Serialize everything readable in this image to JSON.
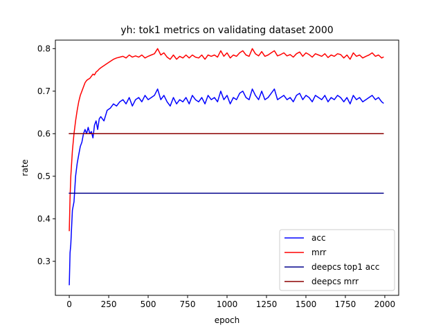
{
  "chart_data": {
    "type": "line",
    "title": "yh: tok1 metrics on validating dataset 2000",
    "xlabel": "epoch",
    "ylabel": "rate",
    "xlim": [
      -88,
      2088
    ],
    "ylim": [
      0.22,
      0.82
    ],
    "xticks": [
      0,
      250,
      500,
      750,
      1000,
      1250,
      1500,
      1750,
      2000
    ],
    "yticks": [
      0.3,
      0.4,
      0.5,
      0.6,
      0.7,
      0.8
    ],
    "grid": false,
    "legend_position": "lower-right",
    "series": [
      {
        "name": "acc",
        "color": "#0000ff",
        "x": [
          0,
          5,
          10,
          20,
          30,
          40,
          50,
          60,
          70,
          80,
          90,
          100,
          110,
          120,
          130,
          140,
          150,
          160,
          170,
          180,
          190,
          200,
          220,
          240,
          260,
          280,
          300,
          320,
          340,
          360,
          380,
          400,
          420,
          440,
          460,
          480,
          500,
          520,
          540,
          560,
          580,
          600,
          620,
          640,
          660,
          680,
          700,
          720,
          740,
          760,
          780,
          800,
          820,
          840,
          860,
          880,
          900,
          920,
          940,
          960,
          980,
          1000,
          1020,
          1040,
          1060,
          1080,
          1100,
          1120,
          1140,
          1160,
          1180,
          1200,
          1220,
          1240,
          1260,
          1280,
          1300,
          1320,
          1340,
          1360,
          1380,
          1400,
          1420,
          1440,
          1460,
          1480,
          1500,
          1520,
          1540,
          1560,
          1580,
          1600,
          1620,
          1640,
          1660,
          1680,
          1700,
          1720,
          1740,
          1760,
          1780,
          1800,
          1820,
          1840,
          1860,
          1880,
          1900,
          1920,
          1940,
          1960,
          1980,
          1990
        ],
        "y": [
          0.245,
          0.32,
          0.34,
          0.42,
          0.44,
          0.5,
          0.53,
          0.55,
          0.57,
          0.58,
          0.6,
          0.61,
          0.6,
          0.615,
          0.6,
          0.605,
          0.59,
          0.62,
          0.63,
          0.61,
          0.635,
          0.64,
          0.63,
          0.655,
          0.66,
          0.67,
          0.665,
          0.675,
          0.68,
          0.67,
          0.685,
          0.665,
          0.68,
          0.685,
          0.675,
          0.69,
          0.68,
          0.685,
          0.69,
          0.705,
          0.68,
          0.69,
          0.675,
          0.665,
          0.685,
          0.67,
          0.68,
          0.675,
          0.685,
          0.67,
          0.69,
          0.68,
          0.675,
          0.685,
          0.67,
          0.69,
          0.68,
          0.685,
          0.675,
          0.7,
          0.68,
          0.69,
          0.67,
          0.685,
          0.68,
          0.695,
          0.7,
          0.685,
          0.68,
          0.705,
          0.69,
          0.68,
          0.7,
          0.68,
          0.685,
          0.695,
          0.705,
          0.68,
          0.685,
          0.69,
          0.68,
          0.685,
          0.675,
          0.69,
          0.695,
          0.68,
          0.69,
          0.685,
          0.675,
          0.69,
          0.685,
          0.68,
          0.69,
          0.675,
          0.685,
          0.68,
          0.69,
          0.685,
          0.675,
          0.685,
          0.67,
          0.69,
          0.68,
          0.685,
          0.675,
          0.68,
          0.685,
          0.69,
          0.68,
          0.685,
          0.675,
          0.672
        ]
      },
      {
        "name": "mrr",
        "color": "#ff0000",
        "x": [
          0,
          5,
          10,
          20,
          30,
          40,
          50,
          60,
          70,
          80,
          90,
          100,
          110,
          120,
          130,
          140,
          150,
          160,
          170,
          180,
          190,
          200,
          220,
          240,
          260,
          280,
          300,
          320,
          340,
          360,
          380,
          400,
          420,
          440,
          460,
          480,
          500,
          520,
          540,
          560,
          580,
          600,
          620,
          640,
          660,
          680,
          700,
          720,
          740,
          760,
          780,
          800,
          820,
          840,
          860,
          880,
          900,
          920,
          940,
          960,
          980,
          1000,
          1020,
          1040,
          1060,
          1080,
          1100,
          1120,
          1140,
          1160,
          1180,
          1200,
          1220,
          1240,
          1260,
          1280,
          1300,
          1320,
          1340,
          1360,
          1380,
          1400,
          1420,
          1440,
          1460,
          1480,
          1500,
          1520,
          1540,
          1560,
          1580,
          1600,
          1620,
          1640,
          1660,
          1680,
          1700,
          1720,
          1740,
          1760,
          1780,
          1800,
          1820,
          1840,
          1860,
          1880,
          1900,
          1920,
          1940,
          1960,
          1980,
          1990
        ],
        "y": [
          0.372,
          0.45,
          0.5,
          0.56,
          0.6,
          0.63,
          0.655,
          0.675,
          0.69,
          0.7,
          0.71,
          0.72,
          0.725,
          0.728,
          0.73,
          0.735,
          0.74,
          0.738,
          0.745,
          0.748,
          0.752,
          0.755,
          0.76,
          0.765,
          0.77,
          0.775,
          0.778,
          0.78,
          0.782,
          0.778,
          0.785,
          0.78,
          0.783,
          0.78,
          0.785,
          0.778,
          0.782,
          0.785,
          0.788,
          0.8,
          0.785,
          0.79,
          0.78,
          0.775,
          0.785,
          0.775,
          0.782,
          0.778,
          0.785,
          0.778,
          0.785,
          0.78,
          0.778,
          0.785,
          0.775,
          0.785,
          0.782,
          0.785,
          0.78,
          0.795,
          0.782,
          0.79,
          0.778,
          0.785,
          0.782,
          0.79,
          0.795,
          0.785,
          0.782,
          0.8,
          0.788,
          0.783,
          0.793,
          0.782,
          0.785,
          0.79,
          0.795,
          0.783,
          0.786,
          0.79,
          0.783,
          0.786,
          0.78,
          0.788,
          0.792,
          0.782,
          0.79,
          0.786,
          0.78,
          0.788,
          0.785,
          0.782,
          0.788,
          0.779,
          0.785,
          0.782,
          0.788,
          0.786,
          0.778,
          0.785,
          0.775,
          0.79,
          0.782,
          0.785,
          0.778,
          0.782,
          0.785,
          0.79,
          0.782,
          0.785,
          0.778,
          0.78
        ]
      },
      {
        "name": "deepcs top1 acc",
        "color": "#00008b",
        "x": [
          0,
          1990
        ],
        "y": [
          0.46,
          0.46
        ]
      },
      {
        "name": "deepcs mrr",
        "color": "#8b0000",
        "x": [
          0,
          1990
        ],
        "y": [
          0.6,
          0.6
        ]
      }
    ]
  }
}
